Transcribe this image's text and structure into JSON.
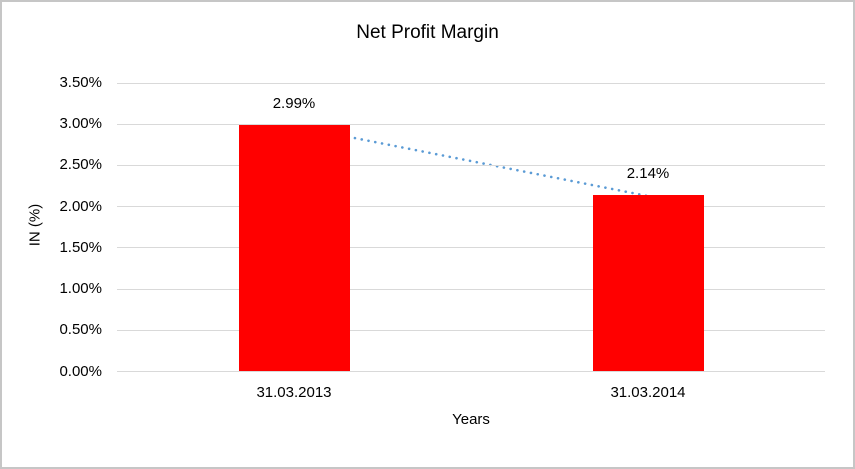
{
  "chart_data": {
    "type": "bar",
    "title": "Net Profit Margin",
    "xlabel": "Years",
    "ylabel": "IN (%)",
    "categories": [
      "31.03.2013",
      "31.03.2014"
    ],
    "values": [
      2.99,
      2.14
    ],
    "data_labels": [
      "2.99%",
      "2.14%"
    ],
    "y_ticks": [
      {
        "value": 0.0,
        "label": "0.00%"
      },
      {
        "value": 0.5,
        "label": "0.50%"
      },
      {
        "value": 1.0,
        "label": "1.00%"
      },
      {
        "value": 1.5,
        "label": "1.50%"
      },
      {
        "value": 2.0,
        "label": "2.00%"
      },
      {
        "value": 2.5,
        "label": "2.50%"
      },
      {
        "value": 3.0,
        "label": "3.00%"
      },
      {
        "value": 3.5,
        "label": "3.50%"
      }
    ],
    "ylim": [
      0,
      3.5
    ],
    "grid": true,
    "legend": "none",
    "bar_color": "#ff0000",
    "gridline_color": "#d9d9d9",
    "text_color": "#000000",
    "trendline": {
      "style": "dotted",
      "color": "#5b9bd5",
      "from_value": 2.99,
      "to_value": 2.14
    }
  }
}
